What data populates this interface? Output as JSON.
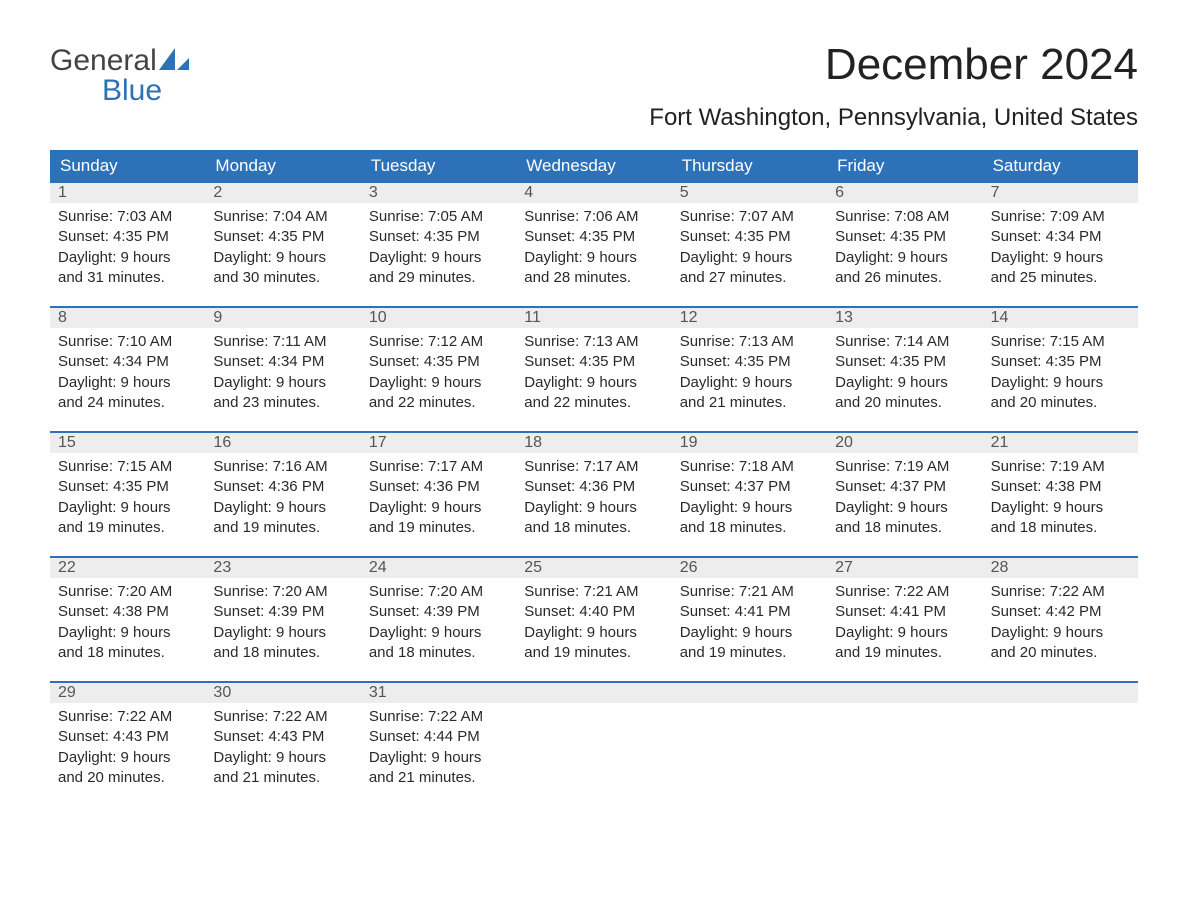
{
  "brand": {
    "word1": "General",
    "word2": "Blue",
    "accent_color": "#2d72b8"
  },
  "title": "December 2024",
  "location": "Fort Washington, Pennsylvania, United States",
  "days_of_week": [
    "Sunday",
    "Monday",
    "Tuesday",
    "Wednesday",
    "Thursday",
    "Friday",
    "Saturday"
  ],
  "header_bg": "#2d72b8",
  "daynum_bg": "#ededed",
  "cell_border_top": "#2d72b8",
  "weeks": [
    [
      {
        "n": "1",
        "sr": "Sunrise: 7:03 AM",
        "ss": "Sunset: 4:35 PM",
        "d1": "Daylight: 9 hours",
        "d2": "and 31 minutes."
      },
      {
        "n": "2",
        "sr": "Sunrise: 7:04 AM",
        "ss": "Sunset: 4:35 PM",
        "d1": "Daylight: 9 hours",
        "d2": "and 30 minutes."
      },
      {
        "n": "3",
        "sr": "Sunrise: 7:05 AM",
        "ss": "Sunset: 4:35 PM",
        "d1": "Daylight: 9 hours",
        "d2": "and 29 minutes."
      },
      {
        "n": "4",
        "sr": "Sunrise: 7:06 AM",
        "ss": "Sunset: 4:35 PM",
        "d1": "Daylight: 9 hours",
        "d2": "and 28 minutes."
      },
      {
        "n": "5",
        "sr": "Sunrise: 7:07 AM",
        "ss": "Sunset: 4:35 PM",
        "d1": "Daylight: 9 hours",
        "d2": "and 27 minutes."
      },
      {
        "n": "6",
        "sr": "Sunrise: 7:08 AM",
        "ss": "Sunset: 4:35 PM",
        "d1": "Daylight: 9 hours",
        "d2": "and 26 minutes."
      },
      {
        "n": "7",
        "sr": "Sunrise: 7:09 AM",
        "ss": "Sunset: 4:34 PM",
        "d1": "Daylight: 9 hours",
        "d2": "and 25 minutes."
      }
    ],
    [
      {
        "n": "8",
        "sr": "Sunrise: 7:10 AM",
        "ss": "Sunset: 4:34 PM",
        "d1": "Daylight: 9 hours",
        "d2": "and 24 minutes."
      },
      {
        "n": "9",
        "sr": "Sunrise: 7:11 AM",
        "ss": "Sunset: 4:34 PM",
        "d1": "Daylight: 9 hours",
        "d2": "and 23 minutes."
      },
      {
        "n": "10",
        "sr": "Sunrise: 7:12 AM",
        "ss": "Sunset: 4:35 PM",
        "d1": "Daylight: 9 hours",
        "d2": "and 22 minutes."
      },
      {
        "n": "11",
        "sr": "Sunrise: 7:13 AM",
        "ss": "Sunset: 4:35 PM",
        "d1": "Daylight: 9 hours",
        "d2": "and 22 minutes."
      },
      {
        "n": "12",
        "sr": "Sunrise: 7:13 AM",
        "ss": "Sunset: 4:35 PM",
        "d1": "Daylight: 9 hours",
        "d2": "and 21 minutes."
      },
      {
        "n": "13",
        "sr": "Sunrise: 7:14 AM",
        "ss": "Sunset: 4:35 PM",
        "d1": "Daylight: 9 hours",
        "d2": "and 20 minutes."
      },
      {
        "n": "14",
        "sr": "Sunrise: 7:15 AM",
        "ss": "Sunset: 4:35 PM",
        "d1": "Daylight: 9 hours",
        "d2": "and 20 minutes."
      }
    ],
    [
      {
        "n": "15",
        "sr": "Sunrise: 7:15 AM",
        "ss": "Sunset: 4:35 PM",
        "d1": "Daylight: 9 hours",
        "d2": "and 19 minutes."
      },
      {
        "n": "16",
        "sr": "Sunrise: 7:16 AM",
        "ss": "Sunset: 4:36 PM",
        "d1": "Daylight: 9 hours",
        "d2": "and 19 minutes."
      },
      {
        "n": "17",
        "sr": "Sunrise: 7:17 AM",
        "ss": "Sunset: 4:36 PM",
        "d1": "Daylight: 9 hours",
        "d2": "and 19 minutes."
      },
      {
        "n": "18",
        "sr": "Sunrise: 7:17 AM",
        "ss": "Sunset: 4:36 PM",
        "d1": "Daylight: 9 hours",
        "d2": "and 18 minutes."
      },
      {
        "n": "19",
        "sr": "Sunrise: 7:18 AM",
        "ss": "Sunset: 4:37 PM",
        "d1": "Daylight: 9 hours",
        "d2": "and 18 minutes."
      },
      {
        "n": "20",
        "sr": "Sunrise: 7:19 AM",
        "ss": "Sunset: 4:37 PM",
        "d1": "Daylight: 9 hours",
        "d2": "and 18 minutes."
      },
      {
        "n": "21",
        "sr": "Sunrise: 7:19 AM",
        "ss": "Sunset: 4:38 PM",
        "d1": "Daylight: 9 hours",
        "d2": "and 18 minutes."
      }
    ],
    [
      {
        "n": "22",
        "sr": "Sunrise: 7:20 AM",
        "ss": "Sunset: 4:38 PM",
        "d1": "Daylight: 9 hours",
        "d2": "and 18 minutes."
      },
      {
        "n": "23",
        "sr": "Sunrise: 7:20 AM",
        "ss": "Sunset: 4:39 PM",
        "d1": "Daylight: 9 hours",
        "d2": "and 18 minutes."
      },
      {
        "n": "24",
        "sr": "Sunrise: 7:20 AM",
        "ss": "Sunset: 4:39 PM",
        "d1": "Daylight: 9 hours",
        "d2": "and 18 minutes."
      },
      {
        "n": "25",
        "sr": "Sunrise: 7:21 AM",
        "ss": "Sunset: 4:40 PM",
        "d1": "Daylight: 9 hours",
        "d2": "and 19 minutes."
      },
      {
        "n": "26",
        "sr": "Sunrise: 7:21 AM",
        "ss": "Sunset: 4:41 PM",
        "d1": "Daylight: 9 hours",
        "d2": "and 19 minutes."
      },
      {
        "n": "27",
        "sr": "Sunrise: 7:22 AM",
        "ss": "Sunset: 4:41 PM",
        "d1": "Daylight: 9 hours",
        "d2": "and 19 minutes."
      },
      {
        "n": "28",
        "sr": "Sunrise: 7:22 AM",
        "ss": "Sunset: 4:42 PM",
        "d1": "Daylight: 9 hours",
        "d2": "and 20 minutes."
      }
    ],
    [
      {
        "n": "29",
        "sr": "Sunrise: 7:22 AM",
        "ss": "Sunset: 4:43 PM",
        "d1": "Daylight: 9 hours",
        "d2": "and 20 minutes."
      },
      {
        "n": "30",
        "sr": "Sunrise: 7:22 AM",
        "ss": "Sunset: 4:43 PM",
        "d1": "Daylight: 9 hours",
        "d2": "and 21 minutes."
      },
      {
        "n": "31",
        "sr": "Sunrise: 7:22 AM",
        "ss": "Sunset: 4:44 PM",
        "d1": "Daylight: 9 hours",
        "d2": "and 21 minutes."
      },
      null,
      null,
      null,
      null
    ]
  ]
}
